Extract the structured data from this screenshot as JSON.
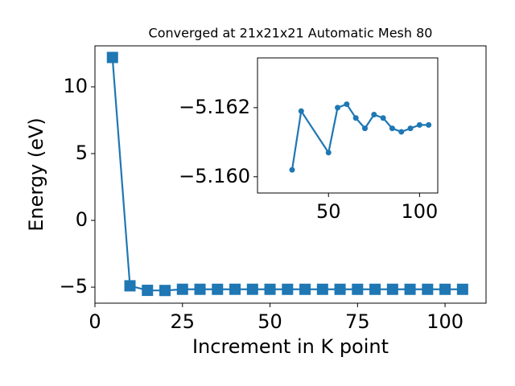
{
  "chart_data": [
    {
      "type": "line",
      "title": "Converged at 21x21x21 Automatic Mesh 80",
      "x_label": "Increment in K point",
      "y_label": "Energy (eV)",
      "marker": "square",
      "color": "#1f77b4",
      "x": [
        5,
        10,
        15,
        20,
        25,
        30,
        35,
        40,
        45,
        50,
        55,
        60,
        65,
        70,
        75,
        80,
        85,
        90,
        95,
        100,
        105
      ],
      "values": [
        12.2,
        -4.9,
        -5.24,
        -5.25,
        -5.16,
        -5.1602,
        -5.1619,
        -5.16,
        -5.16,
        -5.1607,
        -5.162,
        -5.1621,
        -5.1617,
        -5.1614,
        -5.1618,
        -5.1617,
        -5.1614,
        -5.1613,
        -5.1614,
        -5.1615,
        -5.1615
      ],
      "xlim": [
        0,
        111.7
      ],
      "ylim": [
        -6.2,
        13.07
      ],
      "xticks": [
        0,
        25,
        50,
        75,
        100
      ],
      "yticks": [
        {
          "value": -5,
          "label": "−5"
        },
        0,
        5,
        10
      ]
    },
    {
      "type": "line",
      "marker": "circle",
      "color": "#1f77b4",
      "x": [
        30,
        35,
        50,
        55,
        60,
        65,
        70,
        75,
        80,
        85,
        90,
        95,
        100,
        105
      ],
      "values": [
        -5.1602,
        -5.1619,
        -5.1607,
        -5.162,
        -5.1621,
        -5.1617,
        -5.1614,
        -5.1618,
        -5.1617,
        -5.1614,
        -5.1613,
        -5.1614,
        -5.1615,
        -5.1615
      ],
      "xlim": [
        11,
        110
      ],
      "ylim": [
        -5.15953,
        -5.16344
      ],
      "xticks": [
        50,
        100
      ],
      "yticks": [
        {
          "value": -5.162,
          "label": "−5.162"
        },
        {
          "value": -5.16,
          "label": "−5.160"
        }
      ]
    }
  ]
}
